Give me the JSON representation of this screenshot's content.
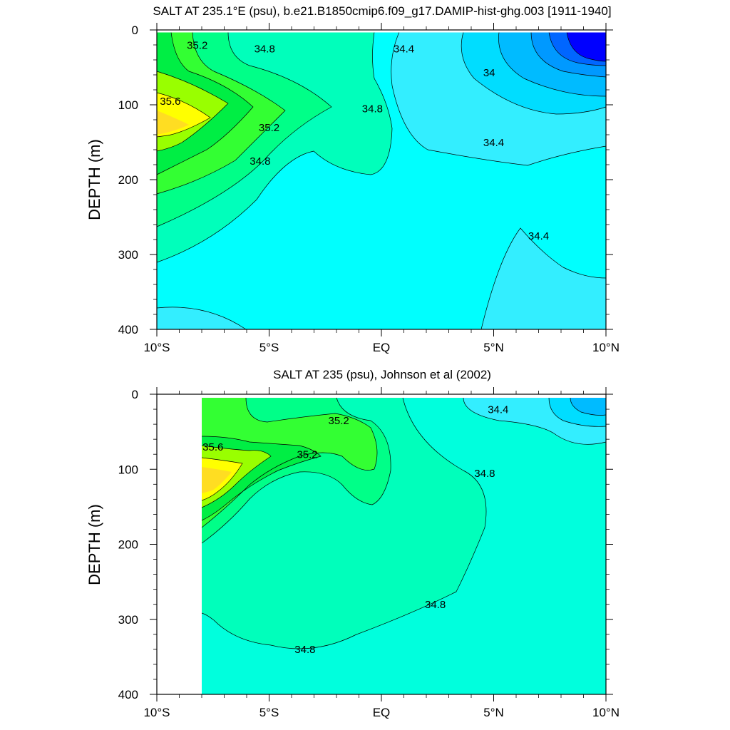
{
  "chart_data": [
    {
      "type": "contour",
      "title": "SALT AT 235.1°E (psu), b.e21.B1850cmip6.f09_g17.DAMIP-hist-ghg.003 [1911-1940]",
      "ylabel": "DEPTH (m)",
      "xlabel": "",
      "x_ticks": [
        "10°S",
        "5°S",
        "EQ",
        "5°N",
        "10°N"
      ],
      "x_tick_values": [
        -10,
        -5,
        0,
        5,
        10
      ],
      "y_ticks": [
        "0",
        "100",
        "200",
        "300",
        "400"
      ],
      "y_tick_values": [
        0,
        100,
        200,
        300,
        400
      ],
      "xlim": [
        -10,
        10
      ],
      "ylim": [
        400,
        0
      ],
      "data_xlim": [
        -10,
        10
      ],
      "contour_labels": [
        {
          "text": "35.2",
          "x": -8.2,
          "y": 25
        },
        {
          "text": "34.8",
          "x": -5.2,
          "y": 30
        },
        {
          "text": "34.4",
          "x": 1.0,
          "y": 30
        },
        {
          "text": "34",
          "x": 4.8,
          "y": 62
        },
        {
          "text": "35.6",
          "x": -9.4,
          "y": 100
        },
        {
          "text": "34.8",
          "x": -0.4,
          "y": 110
        },
        {
          "text": "35.2",
          "x": -5.0,
          "y": 135
        },
        {
          "text": "34.4",
          "x": 5.0,
          "y": 155
        },
        {
          "text": "34.8",
          "x": -5.4,
          "y": 180
        },
        {
          "text": "34.4",
          "x": 7.0,
          "y": 280
        }
      ]
    },
    {
      "type": "contour",
      "title": "SALT AT 235 (psu), Johnson et al (2002)",
      "ylabel": "DEPTH (m)",
      "xlabel": "",
      "x_ticks": [
        "10°S",
        "5°S",
        "EQ",
        "5°N",
        "10°N"
      ],
      "x_tick_values": [
        -10,
        -5,
        0,
        5,
        10
      ],
      "y_ticks": [
        "0",
        "100",
        "200",
        "300",
        "400"
      ],
      "y_tick_values": [
        0,
        100,
        200,
        300,
        400
      ],
      "xlim": [
        -10,
        10
      ],
      "ylim": [
        400,
        0
      ],
      "data_xlim": [
        -8,
        10
      ],
      "contour_labels": [
        {
          "text": "34.4",
          "x": 5.2,
          "y": 25
        },
        {
          "text": "35.2",
          "x": -1.9,
          "y": 40
        },
        {
          "text": "35.6",
          "x": -7.5,
          "y": 75
        },
        {
          "text": "35.2",
          "x": -3.3,
          "y": 85
        },
        {
          "text": "34.8",
          "x": 4.6,
          "y": 110
        },
        {
          "text": "34.8",
          "x": 2.4,
          "y": 285
        },
        {
          "text": "34.8",
          "x": -3.4,
          "y": 345
        }
      ]
    }
  ],
  "colors": {
    "salinity_levels": [
      "#0000ff",
      "#0033ff",
      "#0066ff",
      "#0099ff",
      "#00bbff",
      "#00ddff",
      "#33eeff",
      "#00ffee",
      "#00ffbb",
      "#00ff88",
      "#33ff33",
      "#00ee44",
      "#99ff00",
      "#ffff00",
      "#ffdd22"
    ]
  }
}
